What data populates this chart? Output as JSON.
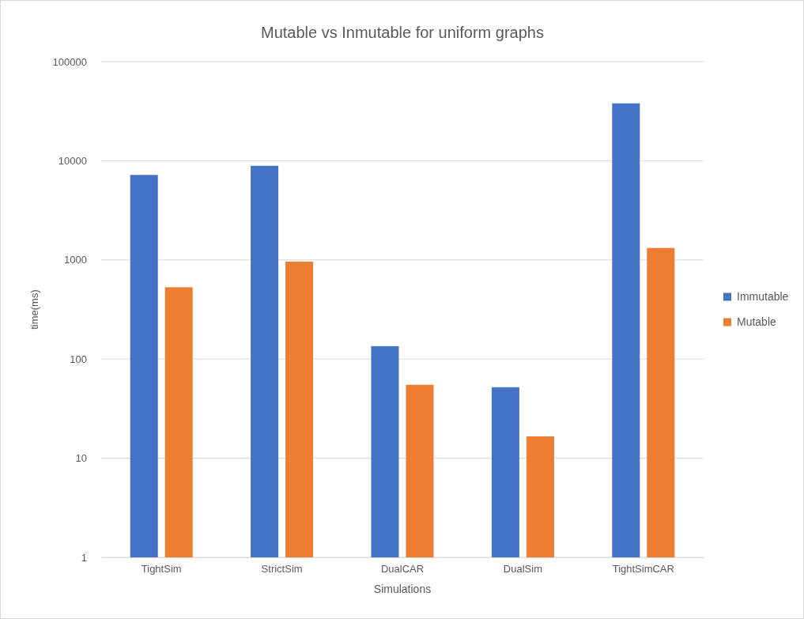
{
  "chart_data": {
    "type": "bar",
    "title": "Mutable vs Inmutable for uniform graphs",
    "xlabel": "Simulations",
    "ylabel": "time(ms)",
    "categories": [
      "TightSim",
      "StrictSim",
      "DualCAR",
      "DualSim",
      "TightSimCAR"
    ],
    "series": [
      {
        "name": "Immutable",
        "color": "#4472c4",
        "values": [
          7200,
          8900,
          135,
          52,
          38000
        ]
      },
      {
        "name": "Mutable",
        "color": "#ed7d31",
        "values": [
          530,
          960,
          55,
          16.6,
          1320
        ]
      }
    ],
    "log": true,
    "ylim": [
      1,
      100000
    ],
    "yticks": [
      1,
      10,
      100,
      1000,
      10000,
      100000
    ],
    "grid": "y",
    "legend": "right"
  }
}
